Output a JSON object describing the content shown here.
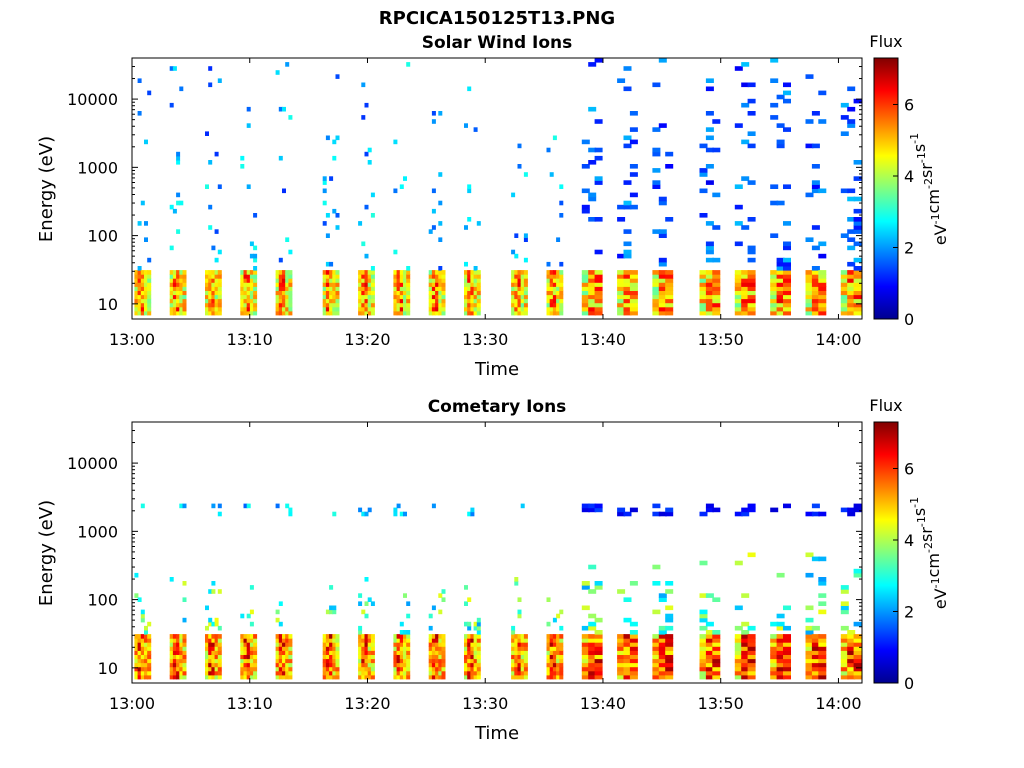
{
  "figure": {
    "title": "RPCICA150125T13.PNG"
  },
  "panels": [
    {
      "title": "Solar Wind Ions",
      "xlabel": "Time",
      "ylabel": "Energy (eV)",
      "colorbar": {
        "label": "Flux",
        "unit": "eV-1cm-2sr-1s-1",
        "ticks": [
          "0",
          "2",
          "4",
          "6"
        ]
      },
      "xticks": [
        "13:00",
        "13:10",
        "13:20",
        "13:30",
        "13:40",
        "13:50",
        "14:00"
      ],
      "yticks": [
        "10",
        "100",
        "1000",
        "10000"
      ]
    },
    {
      "title": "Cometary Ions",
      "xlabel": "Time",
      "ylabel": "Energy (eV)",
      "colorbar": {
        "label": "Flux",
        "unit": "eV-1cm-2sr-1s-1",
        "ticks": [
          "0",
          "2",
          "4",
          "6"
        ]
      },
      "xticks": [
        "13:00",
        "13:10",
        "13:20",
        "13:30",
        "13:40",
        "13:50",
        "14:00"
      ],
      "yticks": [
        "10",
        "100",
        "1000",
        "10000"
      ]
    }
  ],
  "chart_data": [
    {
      "type": "heatmap",
      "title": "Solar Wind Ions",
      "xlabel": "Time",
      "ylabel": "Energy (eV)",
      "xlim": [
        "13:00",
        "14:02"
      ],
      "ylim": [
        6,
        40000
      ],
      "yscale": "log",
      "colorscale": "jet",
      "clim": [
        0,
        7.3
      ],
      "colorbar_label": "Flux (eV-1cm-2sr-1s-1)",
      "sweep_start_minutes": [
        0,
        3,
        6,
        9,
        12,
        16,
        19,
        22,
        25,
        28,
        32,
        35,
        38,
        41,
        44,
        48,
        51,
        54,
        57,
        60
      ],
      "peak": {
        "energy_eV": [
          10,
          30
        ],
        "flux_max": 6.6
      },
      "description_values": {
        "low_energy_band_flux": [
          4,
          6.6
        ],
        "sparse_high_energy_flux": [
          1,
          3
        ]
      }
    },
    {
      "type": "heatmap",
      "title": "Cometary Ions",
      "xlabel": "Time",
      "ylabel": "Energy (eV)",
      "xlim": [
        "13:00",
        "14:02"
      ],
      "ylim": [
        6,
        40000
      ],
      "yscale": "log",
      "colorscale": "jet",
      "clim": [
        0,
        7.3
      ],
      "colorbar_label": "Flux (eV-1cm-2sr-1s-1)",
      "sweep_start_minutes": [
        0,
        3,
        6,
        9,
        12,
        16,
        19,
        22,
        25,
        28,
        32,
        35,
        38,
        41,
        44,
        48,
        51,
        54,
        57,
        60
      ],
      "peak": {
        "energy_eV": [
          10,
          30
        ],
        "flux_max": 7.1
      },
      "description_values": {
        "low_energy_band_flux": [
          4,
          7.1
        ],
        "line_2000eV_flux": [
          1,
          3
        ]
      }
    }
  ]
}
